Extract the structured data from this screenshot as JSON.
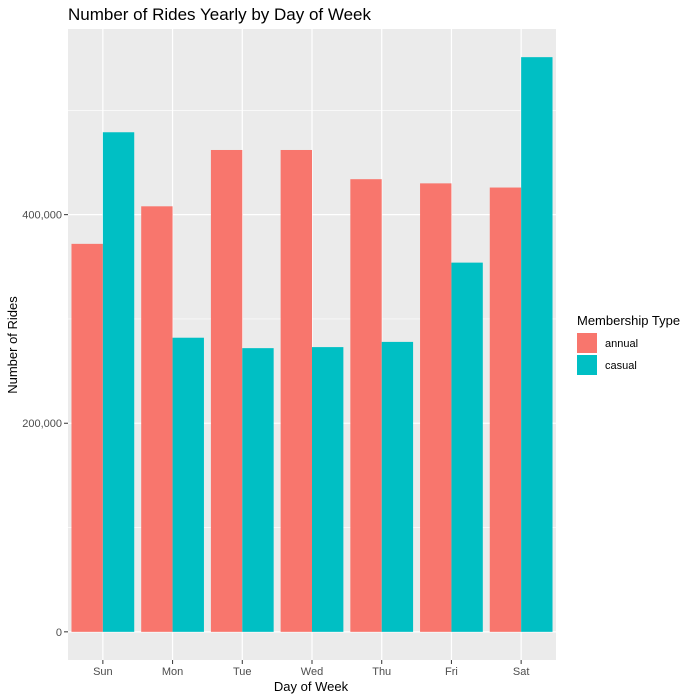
{
  "chart_data": {
    "type": "bar",
    "title": "Number of Rides Yearly by Day of Week",
    "xlabel": "Day of Week",
    "ylabel": "Number of Rides",
    "categories": [
      "Sun",
      "Mon",
      "Tue",
      "Wed",
      "Thu",
      "Fri",
      "Sat"
    ],
    "series": [
      {
        "name": "annual",
        "values": [
          372000,
          408000,
          462000,
          462000,
          434000,
          430000,
          426000
        ]
      },
      {
        "name": "casual",
        "values": [
          479000,
          282000,
          272000,
          273000,
          278000,
          354000,
          551000
        ]
      }
    ],
    "ylim": [
      -27000,
      578000
    ],
    "yticks": [
      0,
      200000,
      400000
    ],
    "ytick_labels": [
      "0",
      "200,000",
      "400,000"
    ],
    "grid": true,
    "legend": {
      "title": "Membership Type",
      "position": "right"
    }
  },
  "colors": {
    "annual": "#F8766D",
    "casual": "#00BFC4",
    "panel": "#EBEBEB",
    "grid": "#FFFFFF"
  }
}
